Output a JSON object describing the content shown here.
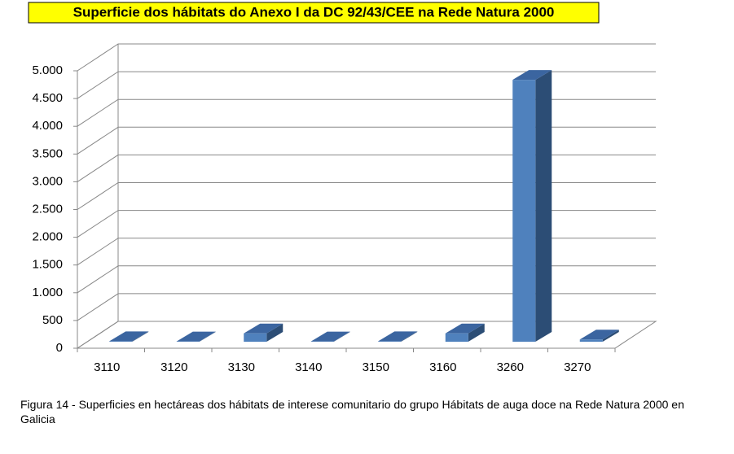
{
  "chart_data": {
    "type": "bar3d",
    "title": "Superficie dos hábitats do Anexo I da DC 92/43/CEE na Rede Natura 2000",
    "caption": "Figura 14 - Superficies en hectáreas dos hábitats de interese comunitario do grupo Hábitats de auga doce na Rede Natura 2000 en Galicia",
    "categories": [
      "3110",
      "3120",
      "3130",
      "3140",
      "3150",
      "3160",
      "3260",
      "3270"
    ],
    "values": [
      10,
      5,
      150,
      5,
      10,
      150,
      4720,
      40
    ],
    "color": "#4f81bd",
    "ylim": [
      0,
      5000
    ],
    "yticks": [
      0,
      500,
      {
        "value": 1000,
        "label": "1.000"
      },
      {
        "value": 1500,
        "label": "1.500"
      },
      {
        "value": 2000,
        "label": "2.000"
      },
      {
        "value": 2500,
        "label": "2.500"
      },
      {
        "value": 3000,
        "label": "3.000"
      },
      {
        "value": 3500,
        "label": "3.500"
      },
      {
        "value": 4000,
        "label": "4.000"
      },
      {
        "value": 4500,
        "label": "4.500"
      },
      {
        "value": 5000,
        "label": "5.000"
      }
    ],
    "grid": true
  }
}
